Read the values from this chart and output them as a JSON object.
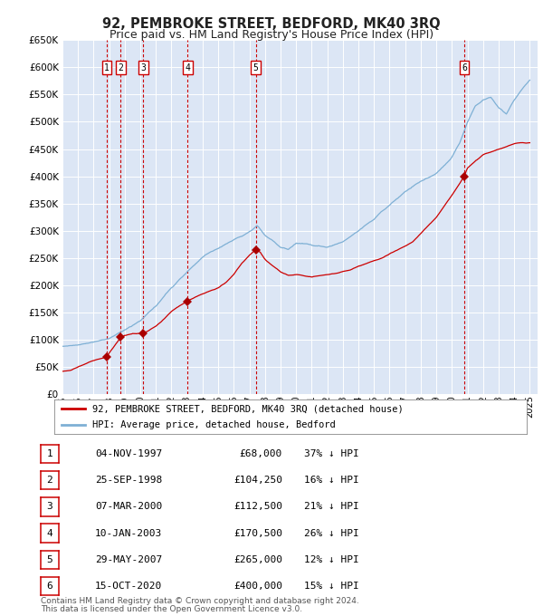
{
  "title": "92, PEMBROKE STREET, BEDFORD, MK40 3RQ",
  "subtitle": "Price paid vs. HM Land Registry's House Price Index (HPI)",
  "title_fontsize": 10.5,
  "subtitle_fontsize": 9,
  "bg_color": "#dce6f5",
  "ylim": [
    0,
    650000
  ],
  "yticks": [
    0,
    50000,
    100000,
    150000,
    200000,
    250000,
    300000,
    350000,
    400000,
    450000,
    500000,
    550000,
    600000,
    650000
  ],
  "xlim_start": 1995.0,
  "xlim_end": 2025.5,
  "grid_color": "#ffffff",
  "transactions": [
    {
      "id": 1,
      "date": "04-NOV-1997",
      "year": 1997.84,
      "price": 68000,
      "pct": "37%",
      "dir": "↓"
    },
    {
      "id": 2,
      "date": "25-SEP-1998",
      "year": 1998.73,
      "price": 104250,
      "pct": "16%",
      "dir": "↓"
    },
    {
      "id": 3,
      "date": "07-MAR-2000",
      "year": 2000.18,
      "price": 112500,
      "pct": "21%",
      "dir": "↓"
    },
    {
      "id": 4,
      "date": "10-JAN-2003",
      "year": 2003.03,
      "price": 170500,
      "pct": "26%",
      "dir": "↓"
    },
    {
      "id": 5,
      "date": "29-MAY-2007",
      "year": 2007.41,
      "price": 265000,
      "pct": "12%",
      "dir": "↓"
    },
    {
      "id": 6,
      "date": "15-OCT-2020",
      "year": 2020.79,
      "price": 400000,
      "pct": "15%",
      "dir": "↓"
    }
  ],
  "red_line_color": "#cc0000",
  "blue_line_color": "#7eb0d5",
  "marker_color": "#aa0000",
  "vline_color": "#cc0000",
  "legend_label_red": "92, PEMBROKE STREET, BEDFORD, MK40 3RQ (detached house)",
  "legend_label_blue": "HPI: Average price, detached house, Bedford",
  "footer1": "Contains HM Land Registry data © Crown copyright and database right 2024.",
  "footer2": "This data is licensed under the Open Government Licence v3.0.",
  "hpi_ctrl_y": [
    1995,
    1996,
    1997,
    1998,
    1999,
    2000,
    2001,
    2002,
    2003,
    2004,
    2005,
    2006,
    2007,
    2007.5,
    2008,
    2009,
    2009.5,
    2010,
    2011,
    2012,
    2013,
    2014,
    2015,
    2016,
    2017,
    2018,
    2019,
    2020,
    2020.5,
    2021,
    2021.5,
    2022,
    2022.5,
    2023,
    2023.5,
    2024,
    2024.5,
    2025
  ],
  "hpi_ctrl_v": [
    88000,
    90000,
    96000,
    103000,
    118000,
    135000,
    162000,
    196000,
    224000,
    252000,
    268000,
    283000,
    298000,
    310000,
    292000,
    270000,
    265000,
    278000,
    274000,
    270000,
    280000,
    300000,
    322000,
    348000,
    372000,
    390000,
    405000,
    435000,
    460000,
    500000,
    530000,
    540000,
    545000,
    525000,
    515000,
    540000,
    560000,
    575000
  ],
  "red_ctrl_y": [
    1995.0,
    1995.5,
    1996.0,
    1996.5,
    1997.0,
    1997.84,
    1998.0,
    1998.73,
    1999.0,
    1999.5,
    2000.18,
    2000.5,
    2001.0,
    2001.5,
    2002.0,
    2002.5,
    2003.03,
    2003.5,
    2004.0,
    2004.5,
    2005.0,
    2005.5,
    2006.0,
    2006.5,
    2007.0,
    2007.41,
    2007.7,
    2008.0,
    2008.5,
    2009.0,
    2009.5,
    2010.0,
    2010.5,
    2011.0,
    2011.5,
    2012.0,
    2012.5,
    2013.0,
    2013.5,
    2014.0,
    2014.5,
    2015.0,
    2015.5,
    2016.0,
    2016.5,
    2017.0,
    2017.5,
    2018.0,
    2018.5,
    2019.0,
    2019.5,
    2020.0,
    2020.79,
    2021.0,
    2021.5,
    2022.0,
    2022.5,
    2023.0,
    2023.5,
    2024.0,
    2024.5,
    2025.0
  ],
  "red_ctrl_v": [
    42000,
    44000,
    50000,
    56000,
    62000,
    68000,
    75000,
    104250,
    108000,
    111000,
    112500,
    116000,
    125000,
    138000,
    152000,
    162000,
    170500,
    178000,
    185000,
    190000,
    195000,
    205000,
    220000,
    240000,
    255000,
    265000,
    260000,
    248000,
    235000,
    225000,
    218000,
    220000,
    218000,
    215000,
    218000,
    220000,
    222000,
    225000,
    228000,
    235000,
    240000,
    245000,
    250000,
    258000,
    265000,
    272000,
    280000,
    295000,
    310000,
    325000,
    345000,
    365000,
    400000,
    415000,
    428000,
    440000,
    445000,
    450000,
    455000,
    460000,
    462000,
    460000
  ]
}
